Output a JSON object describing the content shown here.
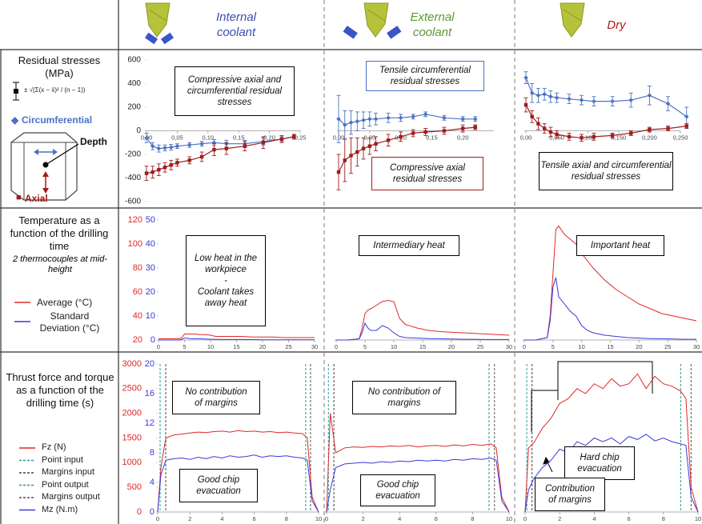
{
  "columns": [
    "Internal coolant",
    "External coolant",
    "Dry"
  ],
  "rows": [
    {
      "title": "Residual stresses",
      "unit": "(MPa)",
      "formula": "± √(Σ(x − x̄)² / (n − 1))",
      "diagram_label": "Depth"
    },
    {
      "title": "Temperature as a function of the drilling time",
      "note": "2 thermocouples at mid-height"
    },
    {
      "title": "Thrust force and torque as a function of the drilling time (s)"
    }
  ],
  "chart_data": [
    {
      "type": "line",
      "x": [
        0,
        0.01,
        0.02,
        0.03,
        0.04,
        0.05,
        0.07,
        0.09,
        0.11,
        0.13,
        0.16,
        0.19,
        0.22,
        0.24
      ],
      "xlim": [
        0,
        0.25
      ],
      "xticks": [
        {
          "value": 0,
          "label": "0,00"
        },
        {
          "value": 0.05,
          "label": "0,05"
        },
        {
          "value": 0.1,
          "label": "0,10"
        },
        {
          "value": 0.15,
          "label": "0,15"
        },
        {
          "value": 0.2,
          "label": "0,20"
        },
        {
          "value": 0.25,
          "label": "0,25"
        }
      ],
      "ylim": [
        -600,
        600
      ],
      "yticks": [
        600,
        400,
        200,
        0,
        -200,
        -400,
        -600
      ],
      "series": [
        {
          "name": "Circumferential",
          "color": "#4a72c4",
          "marker": "diamond",
          "values": [
            -60,
            -130,
            -150,
            -145,
            -140,
            -130,
            -120,
            -110,
            -100,
            -110,
            -110,
            -90,
            -70,
            -50
          ],
          "errors": [
            40,
            30,
            30,
            25,
            25,
            20,
            20,
            20,
            25,
            30,
            30,
            30,
            20,
            20
          ]
        },
        {
          "name": "Axial",
          "color": "#a01c1c",
          "marker": "square",
          "values": [
            -360,
            -350,
            -330,
            -310,
            -290,
            -270,
            -250,
            -220,
            -160,
            -150,
            -130,
            -100,
            -70,
            -50
          ],
          "errors": [
            60,
            50,
            50,
            40,
            40,
            30,
            30,
            40,
            50,
            50,
            40,
            50,
            30,
            20
          ]
        }
      ],
      "annotations": [
        {
          "lines": [
            "Compressive axial and",
            "circumferential residual",
            "stresses"
          ],
          "border": "#000000"
        }
      ]
    },
    {
      "type": "line",
      "x": [
        0,
        0.01,
        0.02,
        0.03,
        0.04,
        0.05,
        0.06,
        0.08,
        0.1,
        0.12,
        0.14,
        0.17,
        0.2,
        0.22
      ],
      "xlim": [
        0,
        0.25
      ],
      "xticks": [
        {
          "value": 0,
          "label": "0,00"
        },
        {
          "value": 0.05,
          "label": "0,05"
        },
        {
          "value": 0.1,
          "label": "0,10"
        },
        {
          "value": 0.15,
          "label": "0,15"
        },
        {
          "value": 0.2,
          "label": "0,20"
        }
      ],
      "ylim": [
        -600,
        600
      ],
      "series": [
        {
          "color": "#4a72c4",
          "marker": "diamond",
          "values": [
            100,
            50,
            70,
            80,
            90,
            100,
            100,
            110,
            110,
            120,
            140,
            110,
            100,
            100
          ],
          "errors": [
            200,
            120,
            100,
            80,
            70,
            60,
            50,
            40,
            30,
            20,
            20,
            20,
            20,
            20
          ]
        },
        {
          "color": "#a01c1c",
          "marker": "square",
          "values": [
            -350,
            -250,
            -210,
            -180,
            -150,
            -130,
            -110,
            -80,
            -50,
            -20,
            -10,
            0,
            20,
            30
          ],
          "errors": [
            150,
            180,
            150,
            120,
            90,
            70,
            60,
            50,
            40,
            30,
            30,
            30,
            30,
            20
          ]
        }
      ],
      "annotations": [
        {
          "lines": [
            "Tensile circumferential",
            "residual stresses"
          ],
          "border": "#4a72c4"
        },
        {
          "lines": [
            "Compressive axial",
            "residual stresses"
          ],
          "border": "#a01c1c"
        }
      ]
    },
    {
      "type": "line",
      "x": [
        0,
        0.01,
        0.02,
        0.03,
        0.04,
        0.05,
        0.07,
        0.09,
        0.11,
        0.14,
        0.17,
        0.2,
        0.23,
        0.26
      ],
      "xlim": [
        0,
        0.25
      ],
      "xticks": [
        {
          "value": 0,
          "label": "0,00"
        },
        {
          "value": 0.05,
          "label": "0,050"
        },
        {
          "value": 0.1,
          "label": "0,100"
        },
        {
          "value": 0.15,
          "label": "0,150"
        },
        {
          "value": 0.2,
          "label": "0,200"
        },
        {
          "value": 0.25,
          "label": "0,250"
        }
      ],
      "ylim": [
        -600,
        600
      ],
      "series": [
        {
          "color": "#4a72c4",
          "marker": "diamond",
          "values": [
            450,
            320,
            300,
            310,
            290,
            280,
            270,
            260,
            250,
            250,
            260,
            300,
            230,
            120
          ],
          "errors": [
            50,
            80,
            60,
            50,
            50,
            40,
            40,
            40,
            40,
            40,
            60,
            80,
            60,
            80
          ]
        },
        {
          "color": "#a01c1c",
          "marker": "square",
          "values": [
            220,
            120,
            60,
            20,
            -10,
            -30,
            -50,
            -60,
            -50,
            -40,
            -20,
            10,
            20,
            40
          ],
          "errors": [
            60,
            50,
            50,
            40,
            40,
            30,
            30,
            30,
            30,
            20,
            20,
            20,
            20,
            20
          ]
        }
      ],
      "annotations": [
        {
          "lines": [
            "Tensile axial and circumferential",
            "residual stresses"
          ],
          "border": "#000000"
        }
      ]
    },
    {
      "type": "line",
      "x": [
        0,
        2,
        4,
        4.5,
        5,
        5.5,
        6,
        7,
        8,
        9,
        10,
        11,
        12,
        14,
        16,
        18,
        20,
        22,
        24,
        26,
        28,
        30
      ],
      "xlim": [
        0,
        30
      ],
      "xticks": [
        0,
        5,
        10,
        15,
        20,
        25,
        30
      ],
      "ylim": [
        20,
        120
      ],
      "yticks": [
        120,
        100,
        80,
        60,
        40,
        20
      ],
      "y2lim": [
        0,
        50
      ],
      "y2ticks": [
        50,
        40,
        30,
        20,
        10,
        0
      ],
      "series": [
        {
          "name": "Average (°C)",
          "color": "#e02828",
          "values": [
            21,
            21,
            21,
            22,
            25,
            25,
            25,
            25,
            24.5,
            24.5,
            24,
            23,
            23,
            23,
            23,
            22.5,
            22.5,
            22.5,
            22,
            22,
            22,
            22
          ]
        },
        {
          "name": "Standard Deviation (°C)",
          "color": "#3a3ad8",
          "axis": "y2",
          "values": [
            0,
            0,
            0,
            0.3,
            0.8,
            0.8,
            0.6,
            0.5,
            0.5,
            0.4,
            0.3,
            0.3,
            0.2,
            0.2,
            0.2,
            0.2,
            0.1,
            0.1,
            0.1,
            0.1,
            0.1,
            0.1
          ]
        }
      ],
      "annotations": [
        {
          "lines": [
            "Low heat in the",
            "workpiece",
            "-",
            "Coolant takes",
            "away heat"
          ],
          "border": "#000000"
        }
      ]
    },
    {
      "type": "line",
      "x": [
        0,
        2,
        4,
        4.5,
        5,
        5.5,
        6,
        7,
        8,
        9,
        10,
        11,
        12,
        14,
        16,
        18,
        20,
        22,
        24,
        26,
        28,
        30
      ],
      "xlim": [
        0,
        30
      ],
      "xticks": [
        0,
        5,
        10,
        15,
        20,
        25,
        30
      ],
      "ylim": [
        20,
        120
      ],
      "y2lim": [
        0,
        50
      ],
      "series": [
        {
          "color": "#e02828",
          "values": [
            20,
            20,
            21,
            30,
            42,
            45,
            46,
            49,
            52,
            53,
            52,
            38,
            33,
            30,
            28,
            27,
            26.5,
            26,
            25.5,
            25,
            24.5,
            24
          ]
        },
        {
          "color": "#3a3ad8",
          "axis": "y2",
          "values": [
            0,
            0,
            0.5,
            3,
            7,
            5,
            4,
            4,
            6,
            5,
            3,
            1.5,
            1,
            0.8,
            0.6,
            0.5,
            0.4,
            0.3,
            0.3,
            0.2,
            0.2,
            0.2
          ]
        }
      ],
      "annotations": [
        {
          "lines": [
            "Intermediary heat"
          ],
          "border": "#000000"
        }
      ]
    },
    {
      "type": "line",
      "x": [
        0,
        2,
        4,
        4.5,
        5,
        5.5,
        6,
        7,
        8,
        9,
        10,
        11,
        12,
        14,
        16,
        18,
        20,
        22,
        24,
        26,
        28,
        30
      ],
      "xlim": [
        0,
        30
      ],
      "xticks": [
        0,
        5,
        10,
        15,
        20,
        25,
        30
      ],
      "ylim": [
        20,
        120
      ],
      "y2lim": [
        0,
        50
      ],
      "series": [
        {
          "color": "#e02828",
          "values": [
            20,
            20,
            22,
            40,
            75,
            112,
            115,
            108,
            104,
            100,
            92,
            86,
            80,
            70,
            62,
            56,
            50,
            46,
            42,
            40,
            38,
            36
          ]
        },
        {
          "color": "#3a3ad8",
          "axis": "y2",
          "values": [
            0,
            0,
            1,
            8,
            22,
            26,
            18,
            15,
            12,
            10,
            6,
            4,
            3,
            2,
            1.5,
            1,
            0.8,
            0.6,
            0.5,
            0.4,
            0.3,
            0.3
          ]
        }
      ],
      "annotations": [
        {
          "lines": [
            "Important heat"
          ],
          "border": "#000000"
        }
      ]
    },
    {
      "type": "line",
      "x": [
        0,
        0.2,
        0.5,
        1,
        1.5,
        2,
        2.5,
        3,
        3.5,
        4,
        4.5,
        5,
        5.5,
        6,
        6.5,
        7,
        7.5,
        8,
        8.5,
        9,
        9.3,
        9.6,
        10
      ],
      "xlim": [
        0,
        10
      ],
      "xticks": [
        0,
        2,
        4,
        6,
        8,
        10
      ],
      "ylim": [
        0,
        3000
      ],
      "yticks": [
        3000,
        2500,
        2000,
        1500,
        1000,
        500,
        0
      ],
      "y2lim": [
        0,
        20
      ],
      "y2ticks": [
        20,
        16,
        12,
        8,
        4,
        0
      ],
      "series": [
        {
          "name": "Fz (N)",
          "color": "#e02828",
          "values": [
            0,
            900,
            1500,
            1560,
            1580,
            1600,
            1620,
            1610,
            1630,
            1640,
            1620,
            1650,
            1630,
            1640,
            1620,
            1630,
            1610,
            1620,
            1600,
            1590,
            1500,
            300,
            0
          ]
        },
        {
          "name": "Mz (N.m)",
          "color": "#3a3ad8",
          "axis": "y2",
          "values": [
            0,
            5,
            7,
            7.2,
            7.3,
            7.1,
            7.4,
            7.2,
            7.5,
            7.3,
            7.6,
            7.4,
            7.5,
            7.7,
            7.4,
            7.6,
            7.5,
            7.6,
            7.4,
            7.3,
            7,
            1.5,
            0
          ]
        }
      ],
      "markers": [
        {
          "name": "Point input",
          "x": 0.15,
          "color": "#2e9c9c"
        },
        {
          "name": "Margins input",
          "x": 0.5,
          "color": "#444444"
        },
        {
          "name": "Point output",
          "x": 9.2,
          "color": "#2e9c7a"
        },
        {
          "name": "Margins output",
          "x": 9.5,
          "color": "#555555"
        }
      ],
      "annotations": [
        {
          "lines": [
            "No contribution",
            "of margins"
          ],
          "border": "#000000"
        },
        {
          "lines": [
            "Good chip",
            "evacuation"
          ],
          "border": "#000000"
        }
      ]
    },
    {
      "type": "line",
      "x": [
        0,
        0.2,
        0.5,
        1,
        1.5,
        2,
        2.5,
        3,
        3.5,
        4,
        4.5,
        5,
        5.5,
        6,
        6.5,
        7,
        7.5,
        8,
        8.5,
        9,
        9.3,
        9.6,
        10
      ],
      "xlim": [
        0,
        10
      ],
      "xticks": [
        0,
        2,
        4,
        6,
        8,
        10
      ],
      "ylim": [
        0,
        3000
      ],
      "y2lim": [
        0,
        20
      ],
      "series": [
        {
          "color": "#e02828",
          "values": [
            0,
            2000,
            1200,
            1300,
            1320,
            1310,
            1330,
            1320,
            1340,
            1330,
            1350,
            1320,
            1340,
            1350,
            1330,
            1360,
            1340,
            1370,
            1350,
            1380,
            1300,
            300,
            0
          ]
        },
        {
          "color": "#3a3ad8",
          "axis": "y2",
          "values": [
            0,
            3,
            6,
            6.5,
            6.6,
            6.7,
            6.6,
            6.8,
            6.7,
            6.9,
            6.8,
            7,
            6.9,
            7,
            6.9,
            7.1,
            7,
            7.2,
            7.1,
            7.3,
            7,
            1.5,
            0
          ]
        }
      ],
      "markers": [
        {
          "x": 0.1,
          "color": "#2e9c9c"
        },
        {
          "x": 0.4,
          "color": "#444444"
        },
        {
          "x": 8.9,
          "color": "#2e9c7a"
        },
        {
          "x": 9.2,
          "color": "#555555"
        }
      ],
      "annotations": [
        {
          "lines": [
            "No contribution of",
            "margins"
          ],
          "border": "#000000"
        },
        {
          "lines": [
            "Good chip",
            "evacuation"
          ],
          "border": "#000000"
        }
      ]
    },
    {
      "type": "line",
      "x": [
        0,
        0.2,
        0.5,
        1,
        1.5,
        2,
        2.5,
        3,
        3.5,
        4,
        4.5,
        5,
        5.5,
        6,
        6.5,
        7,
        7.5,
        8,
        8.5,
        9,
        9.3,
        9.6,
        10
      ],
      "xlim": [
        0,
        10
      ],
      "xticks": [
        0,
        2,
        4,
        6,
        8,
        10
      ],
      "ylim": [
        0,
        3000
      ],
      "y2lim": [
        0,
        20
      ],
      "series": [
        {
          "color": "#e02828",
          "values": [
            0,
            1300,
            1400,
            1700,
            1900,
            2200,
            2300,
            2500,
            2400,
            2600,
            2500,
            2700,
            2550,
            2600,
            2800,
            2500,
            2750,
            2600,
            2550,
            2450,
            2300,
            500,
            0
          ]
        },
        {
          "color": "#3a3ad8",
          "axis": "y2",
          "values": [
            0,
            3,
            4.5,
            6,
            7,
            8.5,
            8,
            9.5,
            9,
            10,
            9.5,
            10,
            9.2,
            10.2,
            9.8,
            10.5,
            9.6,
            10,
            9.5,
            9.2,
            9,
            2,
            0
          ]
        }
      ],
      "markers": [
        {
          "x": 0.1,
          "color": "#2e9c9c"
        },
        {
          "x": 0.4,
          "color": "#444444"
        },
        {
          "x": 9.0,
          "color": "#2e9c7a"
        },
        {
          "x": 9.6,
          "color": "#555555"
        }
      ],
      "annotations": [
        {
          "lines": [
            "Hard chip",
            "evacuation"
          ],
          "border": "#000000"
        },
        {
          "lines": [
            "Contribution",
            "of margins"
          ],
          "border": "#000000"
        }
      ]
    }
  ]
}
